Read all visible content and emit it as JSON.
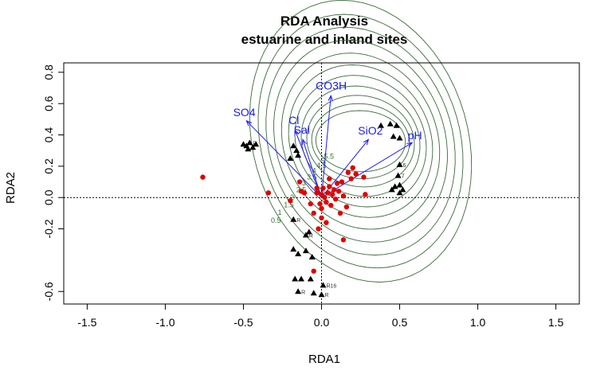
{
  "chart_data": {
    "type": "scatter",
    "title": "RDA Analysis",
    "subtitle": "estuarine and inland sites",
    "xlabel": "RDA1",
    "ylabel": "RDA2",
    "xlim": [
      -1.65,
      1.65
    ],
    "ylim": [
      -0.68,
      0.86
    ],
    "x_ticks": [
      "-1.5",
      "-1.0",
      "-0.5",
      "0.0",
      "0.5",
      "1.0",
      "1.5"
    ],
    "y_ticks": [
      "-0.6",
      "-0.2",
      "0.0",
      "0.2",
      "0.4",
      "0.6",
      "0.8"
    ],
    "grid": false,
    "reference_lines": {
      "x": 0,
      "y": 0,
      "style": "dotted"
    },
    "colors": {
      "sites": "#e00000",
      "species": "#000000",
      "arrows": "#1a1aee",
      "contours": "#3a6a3a"
    },
    "env_vectors": [
      {
        "name": "CO3H",
        "x": 0.06,
        "y": 0.65
      },
      {
        "name": "SO4",
        "x": -0.48,
        "y": 0.49
      },
      {
        "name": "Cl",
        "x": -0.17,
        "y": 0.43
      },
      {
        "name": "Sal",
        "x": -0.12,
        "y": 0.37
      },
      {
        "name": "SiO2",
        "x": 0.3,
        "y": 0.37
      },
      {
        "name": "pH",
        "x": 0.58,
        "y": 0.35
      }
    ],
    "sites": [
      {
        "x": -0.76,
        "y": 0.13
      },
      {
        "x": -0.34,
        "y": 0.03
      },
      {
        "x": -0.2,
        "y": -0.02
      },
      {
        "x": -0.14,
        "y": 0.1
      },
      {
        "x": -0.13,
        "y": 0.04
      },
      {
        "x": -0.11,
        "y": 0.03
      },
      {
        "x": -0.07,
        "y": -0.04
      },
      {
        "x": -0.05,
        "y": -0.1
      },
      {
        "x": -0.03,
        "y": 0.03
      },
      {
        "x": -0.01,
        "y": -0.04
      },
      {
        "x": 0.0,
        "y": 0.02
      },
      {
        "x": 0.0,
        "y": -0.07
      },
      {
        "x": 0.01,
        "y": 0.06
      },
      {
        "x": 0.02,
        "y": 0.0
      },
      {
        "x": 0.03,
        "y": -0.03
      },
      {
        "x": 0.04,
        "y": 0.03
      },
      {
        "x": 0.05,
        "y": 0.07
      },
      {
        "x": 0.06,
        "y": -0.05
      },
      {
        "x": 0.07,
        "y": 0.02
      },
      {
        "x": 0.08,
        "y": 0.05
      },
      {
        "x": 0.09,
        "y": -0.01
      },
      {
        "x": 0.1,
        "y": 0.09
      },
      {
        "x": 0.11,
        "y": 0.04
      },
      {
        "x": 0.12,
        "y": -0.1
      },
      {
        "x": 0.13,
        "y": 0.1
      },
      {
        "x": 0.14,
        "y": 0.01
      },
      {
        "x": 0.16,
        "y": -0.06
      },
      {
        "x": 0.17,
        "y": 0.16
      },
      {
        "x": 0.19,
        "y": 0.12
      },
      {
        "x": 0.2,
        "y": 0.19
      },
      {
        "x": 0.22,
        "y": 0.15
      },
      {
        "x": 0.27,
        "y": 0.13
      },
      {
        "x": 0.28,
        "y": 0.02
      },
      {
        "x": 0.14,
        "y": -0.27
      },
      {
        "x": -0.05,
        "y": -0.47
      },
      {
        "x": 0.03,
        "y": -0.16
      },
      {
        "x": -0.02,
        "y": -0.2
      },
      {
        "x": 0.05,
        "y": 0.12
      },
      {
        "x": -0.03,
        "y": 0.06
      },
      {
        "x": 0.0,
        "y": -0.13
      }
    ],
    "species": [
      {
        "x": -0.46,
        "y": 0.35,
        "label": "R"
      },
      {
        "x": -0.48,
        "y": 0.33,
        "label": ""
      },
      {
        "x": -0.44,
        "y": 0.32,
        "label": ""
      },
      {
        "x": -0.5,
        "y": 0.34,
        "label": ""
      },
      {
        "x": -0.42,
        "y": 0.34,
        "label": ""
      },
      {
        "x": -0.47,
        "y": 0.31,
        "label": ""
      },
      {
        "x": -0.18,
        "y": 0.33,
        "label": ""
      },
      {
        "x": -0.16,
        "y": 0.3,
        "label": ""
      },
      {
        "x": -0.15,
        "y": 0.27,
        "label": ""
      },
      {
        "x": -0.2,
        "y": 0.25,
        "label": ""
      },
      {
        "x": 0.44,
        "y": 0.47,
        "label": ""
      },
      {
        "x": 0.48,
        "y": 0.46,
        "label": ""
      },
      {
        "x": 0.38,
        "y": 0.46,
        "label": ""
      },
      {
        "x": 0.46,
        "y": 0.39,
        "label": ""
      },
      {
        "x": 0.5,
        "y": 0.38,
        "label": ""
      },
      {
        "x": 0.5,
        "y": 0.21,
        "label": "6"
      },
      {
        "x": 0.49,
        "y": 0.14,
        "label": "7"
      },
      {
        "x": 0.5,
        "y": 0.08,
        "label": ""
      },
      {
        "x": 0.47,
        "y": 0.07,
        "label": ""
      },
      {
        "x": 0.45,
        "y": 0.05,
        "label": ""
      },
      {
        "x": 0.5,
        "y": 0.03,
        "label": ""
      },
      {
        "x": 0.52,
        "y": 0.05,
        "label": ""
      },
      {
        "x": -0.18,
        "y": -0.14,
        "label": "R"
      },
      {
        "x": -0.08,
        "y": -0.22,
        "label": ""
      },
      {
        "x": -0.1,
        "y": -0.24,
        "label": "R"
      },
      {
        "x": -0.18,
        "y": -0.33,
        "label": ""
      },
      {
        "x": -0.15,
        "y": -0.36,
        "label": ""
      },
      {
        "x": -0.1,
        "y": -0.34,
        "label": ""
      },
      {
        "x": -0.06,
        "y": -0.38,
        "label": ""
      },
      {
        "x": -0.17,
        "y": -0.52,
        "label": ""
      },
      {
        "x": -0.13,
        "y": -0.52,
        "label": ""
      },
      {
        "x": -0.07,
        "y": -0.52,
        "label": ""
      },
      {
        "x": 0.01,
        "y": -0.56,
        "label": "R16"
      },
      {
        "x": -0.15,
        "y": -0.6,
        "label": "R"
      },
      {
        "x": -0.05,
        "y": -0.61,
        "label": ""
      },
      {
        "x": 0.0,
        "y": -0.62,
        "label": "R"
      }
    ],
    "contours": [
      {
        "level": "0.5",
        "r": 1.0
      },
      {
        "level": "1",
        "r": 0.88
      },
      {
        "level": "1.5",
        "r": 0.77
      },
      {
        "level": "2",
        "r": 0.66
      },
      {
        "level": "2.5",
        "r": 0.55
      },
      {
        "level": "3",
        "r": 0.45
      },
      {
        "level": "3.5",
        "r": 0.36
      },
      {
        "level": "4",
        "r": 0.27
      },
      {
        "level": "4.5",
        "r": 0.19
      },
      {
        "level": "5",
        "r": 0.12
      },
      {
        "level": "5.5",
        "r": 0.06
      }
    ]
  }
}
